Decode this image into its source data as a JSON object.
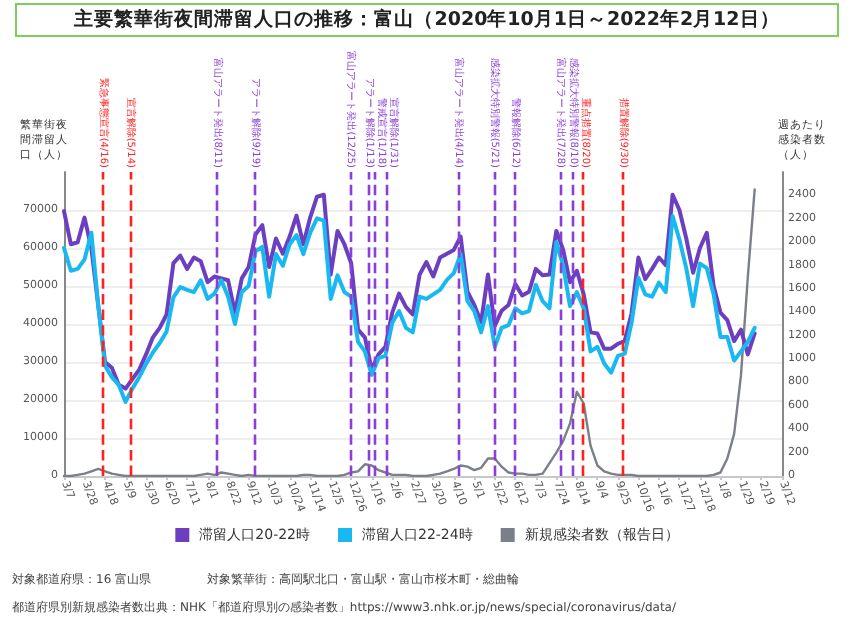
{
  "chart_data": {
    "type": "line",
    "title": "主要繁華街夜間滞留人口の推移：富山（2020年10月1日～2022年2月12日）",
    "ylabel": "繁華街夜間滞留人口（人）",
    "y2label": "週あたり感染者数（人）",
    "annotations": [
      "対象都道府県：16 富山県",
      "対象繁華街：高岡駅北口・富山駅・富山市桜木町・総曲輪",
      "都道府県別新規感染者数出典：NHK「都道府県別の感染者数」https://www3.nhk.or.jp/news/special/coronavirus/data/"
    ],
    "x": [
      "2020-03-07",
      "2020-03-14",
      "2020-03-21",
      "2020-03-28",
      "2020-04-04",
      "2020-04-11",
      "2020-04-18",
      "2020-04-25",
      "2020-05-02",
      "2020-05-09",
      "2020-05-16",
      "2020-05-23",
      "2020-05-30",
      "2020-06-06",
      "2020-06-13",
      "2020-06-20",
      "2020-06-27",
      "2020-07-04",
      "2020-07-11",
      "2020-07-18",
      "2020-07-25",
      "2020-08-01",
      "2020-08-08",
      "2020-08-15",
      "2020-08-22",
      "2020-08-29",
      "2020-09-05",
      "2020-09-12",
      "2020-09-19",
      "2020-09-26",
      "2020-10-03",
      "2020-10-10",
      "2020-10-17",
      "2020-10-24",
      "2020-10-31",
      "2020-11-07",
      "2020-11-14",
      "2020-11-21",
      "2020-11-28",
      "2020-12-05",
      "2020-12-12",
      "2020-12-19",
      "2020-12-26",
      "2021-01-02",
      "2021-01-09",
      "2021-01-16",
      "2021-01-23",
      "2021-01-30",
      "2021-02-06",
      "2021-02-13",
      "2021-02-20",
      "2021-02-27",
      "2021-03-06",
      "2021-03-13",
      "2021-03-20",
      "2021-03-27",
      "2021-04-03",
      "2021-04-10",
      "2021-04-17",
      "2021-04-24",
      "2021-05-01",
      "2021-05-08",
      "2021-05-15",
      "2021-05-22",
      "2021-05-29",
      "2021-06-05",
      "2021-06-12",
      "2021-06-19",
      "2021-06-26",
      "2021-07-03",
      "2021-07-10",
      "2021-07-17",
      "2021-07-24",
      "2021-07-31",
      "2021-08-07",
      "2021-08-14",
      "2021-08-21",
      "2021-08-28",
      "2021-09-04",
      "2021-09-11",
      "2021-09-18",
      "2021-09-25",
      "2021-10-02",
      "2021-10-09",
      "2021-10-16",
      "2021-10-23",
      "2021-10-30",
      "2021-11-06",
      "2021-11-13",
      "2021-11-20",
      "2021-11-27",
      "2021-12-04",
      "2021-12-11",
      "2021-12-18",
      "2021-12-25",
      "2022-01-01",
      "2022-01-08",
      "2022-01-15",
      "2022-01-22",
      "2022-01-29",
      "2022-02-05",
      "2022-02-12"
    ],
    "xlim": [
      "2020-03-07",
      "2022-03-12"
    ],
    "xticks": [
      {
        "value": "2020-03-07",
        "label": "3/7"
      },
      {
        "value": "2020-03-28",
        "label": "3/28"
      },
      {
        "value": "2020-04-18",
        "label": "4/18"
      },
      {
        "value": "2020-05-09",
        "label": "5/9"
      },
      {
        "value": "2020-05-30",
        "label": "5/30"
      },
      {
        "value": "2020-06-20",
        "label": "6/20"
      },
      {
        "value": "2020-07-11",
        "label": "7/11"
      },
      {
        "value": "2020-08-01",
        "label": "8/1"
      },
      {
        "value": "2020-08-22",
        "label": "8/22"
      },
      {
        "value": "2020-09-12",
        "label": "9/12"
      },
      {
        "value": "2020-10-03",
        "label": "10/3"
      },
      {
        "value": "2020-10-24",
        "label": "10/24"
      },
      {
        "value": "2020-11-14",
        "label": "11/14"
      },
      {
        "value": "2020-12-05",
        "label": "12/5"
      },
      {
        "value": "2020-12-26",
        "label": "12/26"
      },
      {
        "value": "2021-01-16",
        "label": "1/16"
      },
      {
        "value": "2021-02-06",
        "label": "2/6"
      },
      {
        "value": "2021-02-27",
        "label": "2/27"
      },
      {
        "value": "2021-03-20",
        "label": "3/20"
      },
      {
        "value": "2021-04-10",
        "label": "4/10"
      },
      {
        "value": "2021-05-01",
        "label": "5/1"
      },
      {
        "value": "2021-05-22",
        "label": "5/22"
      },
      {
        "value": "2021-06-12",
        "label": "6/12"
      },
      {
        "value": "2021-07-03",
        "label": "7/3"
      },
      {
        "value": "2021-07-24",
        "label": "7/24"
      },
      {
        "value": "2021-08-14",
        "label": "8/14"
      },
      {
        "value": "2021-09-04",
        "label": "9/4"
      },
      {
        "value": "2021-09-25",
        "label": "9/25"
      },
      {
        "value": "2021-10-16",
        "label": "10/16"
      },
      {
        "value": "2021-11-06",
        "label": "11/6"
      },
      {
        "value": "2021-11-27",
        "label": "11/27"
      },
      {
        "value": "2021-12-18",
        "label": "12/18"
      },
      {
        "value": "2022-01-08",
        "label": "1/8"
      },
      {
        "value": "2022-01-29",
        "label": "1/29"
      },
      {
        "value": "2022-02-19",
        "label": "2/19"
      },
      {
        "value": "2022-03-12",
        "label": "3/12"
      }
    ],
    "ylim": [
      0,
      80000
    ],
    "yticks": [
      0,
      10000,
      20000,
      30000,
      40000,
      50000,
      60000,
      70000
    ],
    "y2lim": [
      0,
      2600
    ],
    "y2ticks": [
      0,
      200,
      400,
      600,
      800,
      1000,
      1200,
      1400,
      1600,
      1800,
      2000,
      2200,
      2400
    ],
    "series": [
      {
        "name": "滞留人口20-22時",
        "color": "#6b3fbf",
        "values": [
          69700,
          61000,
          61500,
          68000,
          60000,
          45000,
          30000,
          28500,
          24000,
          23000,
          25500,
          28000,
          32000,
          36500,
          39000,
          42500,
          56000,
          58000,
          54500,
          57500,
          56500,
          51000,
          52500,
          52000,
          51500,
          43000,
          52000,
          55000,
          63500,
          66000,
          55000,
          62500,
          58500,
          63000,
          68500,
          61000,
          68000,
          73500,
          74000,
          53000,
          64500,
          61000,
          56000,
          38500,
          36500,
          28000,
          32000,
          34000,
          43000,
          48000,
          44500,
          42500,
          53000,
          56300,
          52500,
          57500,
          58500,
          59500,
          63000,
          48500,
          45000,
          40500,
          53000,
          39500,
          43500,
          45000,
          50500,
          47500,
          48500,
          54500,
          52800,
          53000,
          64500,
          59500,
          51000,
          54000,
          47800,
          37800,
          37500,
          33500,
          33500,
          34800,
          35500,
          42800,
          57500,
          51800,
          54500,
          57500,
          55500,
          74000,
          70000,
          62500,
          53500,
          60000,
          64000,
          50000,
          43000,
          41000,
          35500,
          38500,
          32000,
          37500
        ]
      },
      {
        "name": "滞留人口22-24時",
        "color": "#1ab8f0",
        "values": [
          60000,
          54000,
          54500,
          57000,
          64000,
          45000,
          29000,
          26000,
          24000,
          19500,
          23000,
          26000,
          29500,
          32500,
          35000,
          38000,
          47000,
          49700,
          49000,
          48400,
          51500,
          46600,
          48000,
          51500,
          47200,
          40000,
          48400,
          50000,
          59100,
          60300,
          47200,
          58400,
          55300,
          61000,
          63400,
          58400,
          64000,
          67800,
          67200,
          46600,
          52800,
          48400,
          47200,
          35300,
          32800,
          26600,
          31000,
          31600,
          40300,
          43400,
          39000,
          37800,
          47200,
          46600,
          47800,
          49000,
          51600,
          53400,
          58400,
          46000,
          43400,
          37800,
          44700,
          34000,
          39000,
          39700,
          44100,
          42800,
          43400,
          50300,
          46000,
          44100,
          61600,
          55300,
          44700,
          48400,
          44100,
          32800,
          34000,
          29600,
          27200,
          31600,
          32200,
          40300,
          52200,
          47800,
          47200,
          50900,
          48400,
          68400,
          62200,
          54700,
          44700,
          55900,
          54700,
          47800,
          36600,
          36600,
          30400,
          32800,
          35300,
          39000
        ]
      },
      {
        "name": "新規感染者数（報告日）",
        "color": "#7a7f88",
        "axis": "y2",
        "values": [
          0,
          0,
          10,
          20,
          40,
          60,
          40,
          20,
          10,
          0,
          0,
          0,
          0,
          0,
          0,
          0,
          0,
          0,
          0,
          0,
          10,
          20,
          10,
          30,
          20,
          10,
          0,
          10,
          0,
          0,
          0,
          0,
          0,
          0,
          0,
          10,
          10,
          0,
          0,
          0,
          0,
          10,
          30,
          40,
          100,
          90,
          50,
          30,
          10,
          10,
          10,
          0,
          0,
          0,
          10,
          20,
          40,
          60,
          90,
          80,
          50,
          70,
          150,
          150,
          80,
          30,
          20,
          20,
          10,
          10,
          20,
          110,
          200,
          300,
          450,
          720,
          620,
          260,
          90,
          40,
          20,
          10,
          10,
          10,
          0,
          0,
          0,
          0,
          0,
          0,
          0,
          0,
          0,
          0,
          0,
          10,
          30,
          150,
          360,
          860,
          1700,
          2450
        ]
      }
    ],
    "ref_lines": [
      {
        "axis": "x",
        "value": "2020-04-16",
        "label": "緊急事態宣言(4/16)",
        "color": "#ff2020",
        "line_style": "dashed"
      },
      {
        "axis": "x",
        "value": "2020-05-14",
        "label": "宣言解除(5/14)",
        "color": "#ff2020",
        "line_style": "dashed"
      },
      {
        "axis": "x",
        "value": "2020-08-11",
        "label": "富山アラート発出(8/11)",
        "color": "#8b3fd6",
        "line_style": "dashed"
      },
      {
        "axis": "x",
        "value": "2020-09-19",
        "label": "アラート解除(9/19)",
        "color": "#8b3fd6",
        "line_style": "dashed"
      },
      {
        "axis": "x",
        "value": "2020-12-25",
        "label": "富山アラート発出(12/25)",
        "color": "#8b3fd6",
        "line_style": "dashed"
      },
      {
        "axis": "x",
        "value": "2021-01-13",
        "label": "アラート解除(1/13)",
        "color": "#8b3fd6",
        "line_style": "dashed"
      },
      {
        "axis": "x",
        "value": "2021-01-18",
        "label": "警戒宣言(1/18)",
        "color": "#8b3fd6",
        "line_style": "dashed"
      },
      {
        "axis": "x",
        "value": "2021-01-31",
        "label": "宣言解除(1/31)",
        "color": "#8b3fd6",
        "line_style": "dashed"
      },
      {
        "axis": "x",
        "value": "2021-04-14",
        "label": "富山アラート発出(4/14)",
        "color": "#8b3fd6",
        "line_style": "dashed"
      },
      {
        "axis": "x",
        "value": "2021-05-21",
        "label": "感染拡大特別警報(5/21)",
        "color": "#8b3fd6",
        "line_style": "dashed"
      },
      {
        "axis": "x",
        "value": "2021-06-12",
        "label": "警報解除(6/12)",
        "color": "#8b3fd6",
        "line_style": "dashed"
      },
      {
        "axis": "x",
        "value": "2021-07-28",
        "label": "富山アラート発出(7/28)",
        "color": "#8b3fd6",
        "line_style": "dashed"
      },
      {
        "axis": "x",
        "value": "2021-08-10",
        "label": "感染拡大特別警報(8/10)",
        "color": "#8b3fd6",
        "line_style": "dashed"
      },
      {
        "axis": "x",
        "value": "2021-08-20",
        "label": "重点措置(8/20)",
        "color": "#ff2020",
        "line_style": "dashed"
      },
      {
        "axis": "x",
        "value": "2021-09-30",
        "label": "措置解除(9/30)",
        "color": "#ff2020",
        "line_style": "dashed"
      }
    ],
    "grid": "y",
    "legend": "bottom",
    "marker": "none",
    "line_style": "solid"
  }
}
